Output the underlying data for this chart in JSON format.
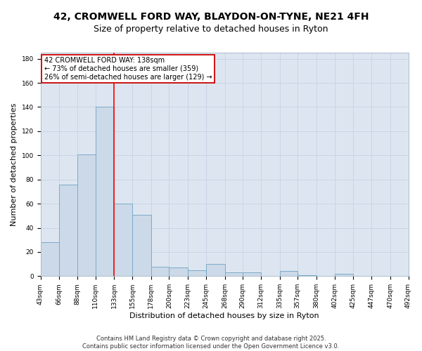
{
  "title": "42, CROMWELL FORD WAY, BLAYDON-ON-TYNE, NE21 4FH",
  "subtitle": "Size of property relative to detached houses in Ryton",
  "xlabel": "Distribution of detached houses by size in Ryton",
  "ylabel": "Number of detached properties",
  "bar_values": [
    28,
    76,
    101,
    140,
    60,
    51,
    8,
    7,
    5,
    10,
    3,
    3,
    0,
    4,
    1,
    0,
    2,
    0,
    0,
    0
  ],
  "bin_edges": [
    43,
    66,
    88,
    110,
    133,
    155,
    178,
    200,
    223,
    245,
    268,
    290,
    312,
    335,
    357,
    380,
    402,
    425,
    447,
    470,
    492
  ],
  "bar_labels": [
    "43sqm",
    "66sqm",
    "88sqm",
    "110sqm",
    "133sqm",
    "155sqm",
    "178sqm",
    "200sqm",
    "223sqm",
    "245sqm",
    "268sqm",
    "290sqm",
    "312sqm",
    "335sqm",
    "357sqm",
    "380sqm",
    "402sqm",
    "425sqm",
    "447sqm",
    "470sqm",
    "492sqm"
  ],
  "bar_color": "#ccd9e8",
  "bar_edge_color": "#7aaac8",
  "red_line_x": 133,
  "annotation_text": "42 CROMWELL FORD WAY: 138sqm\n← 73% of detached houses are smaller (359)\n26% of semi-detached houses are larger (129) →",
  "annotation_box_color": "#ffffff",
  "annotation_box_edge": "#cc0000",
  "ylim": [
    0,
    185
  ],
  "yticks": [
    0,
    20,
    40,
    60,
    80,
    100,
    120,
    140,
    160,
    180
  ],
  "grid_color": "#c8d4e8",
  "bg_color": "#dde6f0",
  "footer": "Contains HM Land Registry data © Crown copyright and database right 2025.\nContains public sector information licensed under the Open Government Licence v3.0.",
  "title_fontsize": 10,
  "subtitle_fontsize": 9,
  "axis_label_fontsize": 8,
  "tick_fontsize": 6.5,
  "annotation_fontsize": 7,
  "footer_fontsize": 6
}
